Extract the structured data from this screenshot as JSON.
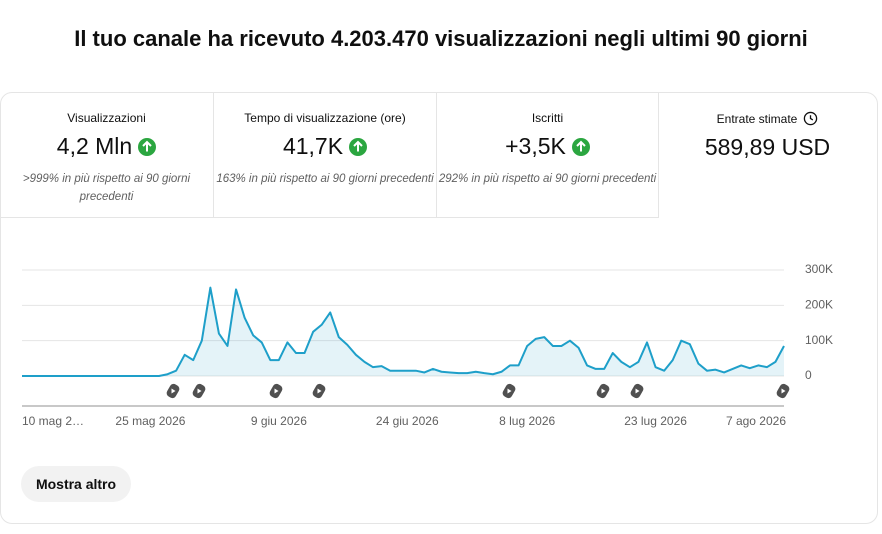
{
  "title": "Il tuo canale ha ricevuto 4.203.470 visualizzazioni negli ultimi 90 giorni",
  "metrics": [
    {
      "label": "Visualizzazioni",
      "value": "4,2 Mln",
      "note": ">999% in più rispetto ai 90 giorni precedenti"
    },
    {
      "label": "Tempo di visualizzazione (ore)",
      "value": "41,7K",
      "note": "163% in più rispetto ai 90 giorni precedenti"
    },
    {
      "label": "Iscritti",
      "value": "+3,5K",
      "note": "292% in più rispetto ai 90 giorni precedenti"
    },
    {
      "label": "Entrate stimate",
      "value": "589,89 USD"
    }
  ],
  "chart_data": {
    "type": "line",
    "categories": [
      "10 mag 2…",
      null,
      null,
      null,
      null,
      null,
      null,
      null,
      null,
      null,
      null,
      null,
      null,
      null,
      null,
      "25 mag 2026",
      null,
      null,
      null,
      null,
      null,
      null,
      null,
      null,
      null,
      null,
      null,
      null,
      null,
      null,
      "9 giu 2026",
      null,
      null,
      null,
      null,
      null,
      null,
      null,
      null,
      null,
      null,
      null,
      null,
      null,
      null,
      "24 giu 2026",
      null,
      null,
      null,
      null,
      null,
      null,
      null,
      null,
      null,
      null,
      null,
      null,
      null,
      "8 lug 2026",
      null,
      null,
      null,
      null,
      null,
      null,
      null,
      null,
      null,
      null,
      null,
      null,
      null,
      null,
      "23 lug 2026",
      null,
      null,
      null,
      null,
      null,
      null,
      null,
      null,
      null,
      null,
      null,
      null,
      null,
      null,
      "7 ago 2026"
    ],
    "series": [
      {
        "name": "Visualizzazioni",
        "color": "#1e9fc9",
        "values": [
          0,
          0,
          0,
          0,
          0,
          0,
          0,
          0,
          0,
          0,
          0,
          0,
          0,
          0,
          0,
          0,
          0,
          5000,
          15000,
          60000,
          45000,
          100000,
          250000,
          120000,
          85000,
          245000,
          165000,
          115000,
          95000,
          45000,
          45000,
          95000,
          65000,
          65000,
          125000,
          145000,
          180000,
          110000,
          88000,
          60000,
          40000,
          25000,
          28000,
          15000,
          15000,
          15000,
          15000,
          10000,
          20000,
          12000,
          10000,
          8000,
          8000,
          12000,
          8000,
          5000,
          12000,
          30000,
          30000,
          85000,
          105000,
          110000,
          85000,
          85000,
          100000,
          80000,
          30000,
          20000,
          20000,
          65000,
          40000,
          25000,
          40000,
          95000,
          25000,
          15000,
          45000,
          100000,
          90000,
          35000,
          15000,
          18000,
          10000,
          20000,
          30000,
          22000,
          30000,
          25000,
          40000,
          85000
        ]
      }
    ],
    "ylim": [
      0,
      300000
    ],
    "yticks": [
      0,
      {
        "value": 100000,
        "label": "100K"
      },
      {
        "value": 200000,
        "label": "200K"
      },
      {
        "value": 300000,
        "label": "300K"
      }
    ],
    "grid": true
  },
  "button": "Mostra altro"
}
